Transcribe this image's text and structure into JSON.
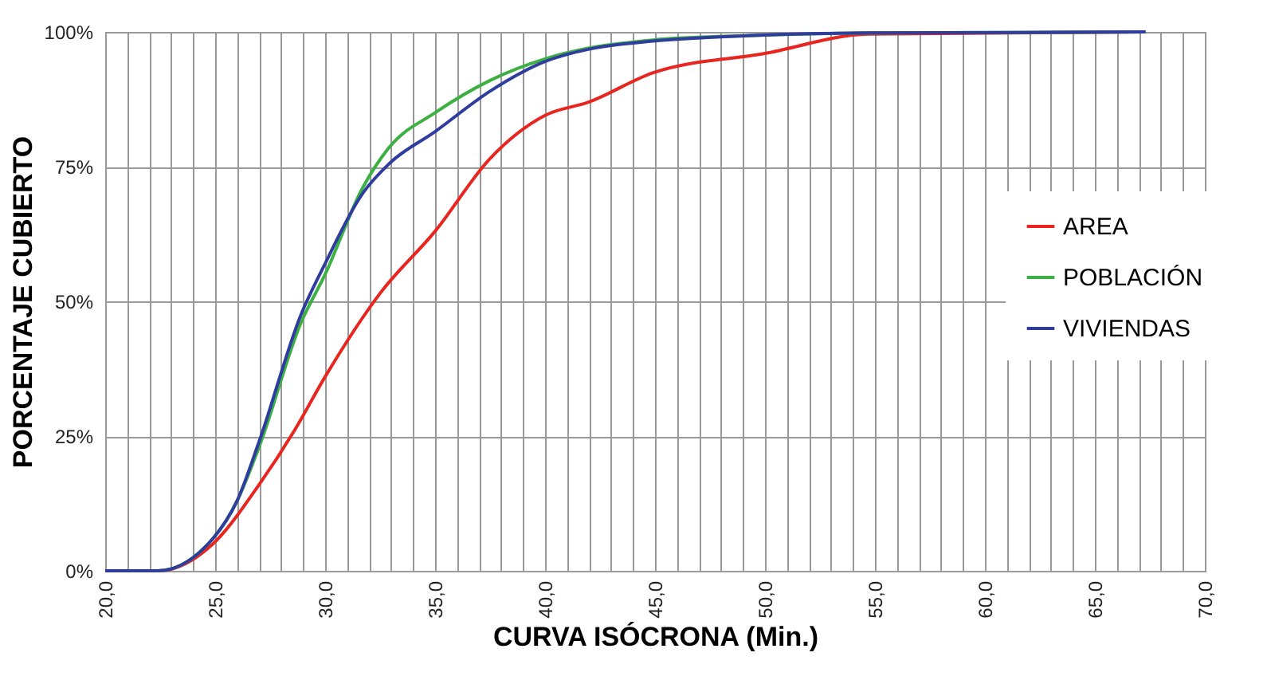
{
  "chart_data": {
    "type": "line",
    "xlabel": "CURVA ISÓCRONA (Min.)",
    "ylabel": "PORCENTAJE CUBIERTO",
    "xlim": [
      20,
      70
    ],
    "ylim": [
      0,
      100
    ],
    "xticks": [
      {
        "value": 20,
        "label": "20,0"
      },
      {
        "value": 21,
        "label": null
      },
      {
        "value": 22,
        "label": null
      },
      {
        "value": 23,
        "label": null
      },
      {
        "value": 24,
        "label": null
      },
      {
        "value": 25,
        "label": "25,0"
      },
      {
        "value": 26,
        "label": null
      },
      {
        "value": 27,
        "label": null
      },
      {
        "value": 28,
        "label": null
      },
      {
        "value": 29,
        "label": null
      },
      {
        "value": 30,
        "label": "30,0"
      },
      {
        "value": 31,
        "label": null
      },
      {
        "value": 32,
        "label": null
      },
      {
        "value": 33,
        "label": null
      },
      {
        "value": 34,
        "label": null
      },
      {
        "value": 35,
        "label": "35,0"
      },
      {
        "value": 36,
        "label": null
      },
      {
        "value": 37,
        "label": null
      },
      {
        "value": 38,
        "label": null
      },
      {
        "value": 39,
        "label": null
      },
      {
        "value": 40,
        "label": "40,0"
      },
      {
        "value": 41,
        "label": null
      },
      {
        "value": 42,
        "label": null
      },
      {
        "value": 43,
        "label": null
      },
      {
        "value": 44,
        "label": null
      },
      {
        "value": 45,
        "label": "45,0"
      },
      {
        "value": 46,
        "label": null
      },
      {
        "value": 47,
        "label": null
      },
      {
        "value": 48,
        "label": null
      },
      {
        "value": 49,
        "label": null
      },
      {
        "value": 50,
        "label": "50,0"
      },
      {
        "value": 51,
        "label": null
      },
      {
        "value": 52,
        "label": null
      },
      {
        "value": 53,
        "label": null
      },
      {
        "value": 54,
        "label": null
      },
      {
        "value": 55,
        "label": "55,0"
      },
      {
        "value": 56,
        "label": null
      },
      {
        "value": 57,
        "label": null
      },
      {
        "value": 58,
        "label": null
      },
      {
        "value": 59,
        "label": null
      },
      {
        "value": 60,
        "label": "60,0"
      },
      {
        "value": 61,
        "label": null
      },
      {
        "value": 62,
        "label": null
      },
      {
        "value": 63,
        "label": null
      },
      {
        "value": 64,
        "label": null
      },
      {
        "value": 65,
        "label": "65,0"
      },
      {
        "value": 66,
        "label": null
      },
      {
        "value": 67,
        "label": null
      },
      {
        "value": 68,
        "label": null
      },
      {
        "value": 69,
        "label": null
      },
      {
        "value": 70,
        "label": "70,0"
      }
    ],
    "yticks": [
      {
        "value": 0,
        "label": "0%"
      },
      {
        "value": 25,
        "label": "25%"
      },
      {
        "value": 50,
        "label": "50%"
      },
      {
        "value": 75,
        "label": "75%"
      },
      {
        "value": 100,
        "label": "100%"
      }
    ],
    "grid": true,
    "legend": "right",
    "line_style": "solid",
    "marker": "none",
    "series": [
      {
        "name": "AREA",
        "color": "#e8251f",
        "x": [
          20,
          22.4,
          24.9,
          27,
          28.6,
          30,
          32.5,
          35,
          37.5,
          40,
          42,
          44.9,
          50,
          54.7,
          67.3
        ],
        "values": [
          0,
          0,
          5,
          16,
          26,
          36,
          51.5,
          63,
          76.5,
          84.5,
          87,
          92.4,
          96,
          99.6,
          100
        ]
      },
      {
        "name": "POBLACIÓN",
        "color": "#3cb043",
        "x": [
          20,
          22.4,
          24.9,
          26,
          27,
          28.9,
          30,
          31.7,
          32.9,
          35,
          37.5,
          40,
          42,
          44.9,
          49.2,
          54.7,
          67.3
        ],
        "values": [
          0,
          0,
          6,
          13,
          23,
          46,
          55,
          71,
          78.5,
          85,
          91,
          95,
          97,
          98.5,
          99.3,
          99.8,
          100
        ]
      },
      {
        "name": "VIVIENDAS",
        "color": "#2e3d9e",
        "x": [
          20,
          22.4,
          24.9,
          26,
          27,
          28.9,
          30,
          31.7,
          32.9,
          35,
          37.5,
          40,
          42,
          44.9,
          49.2,
          54.7,
          67.3
        ],
        "values": [
          0,
          0,
          6,
          13,
          24,
          47.5,
          57,
          70,
          75.5,
          81.5,
          89,
          94.5,
          96.8,
          98.3,
          99.3,
          99.8,
          100
        ]
      }
    ]
  }
}
